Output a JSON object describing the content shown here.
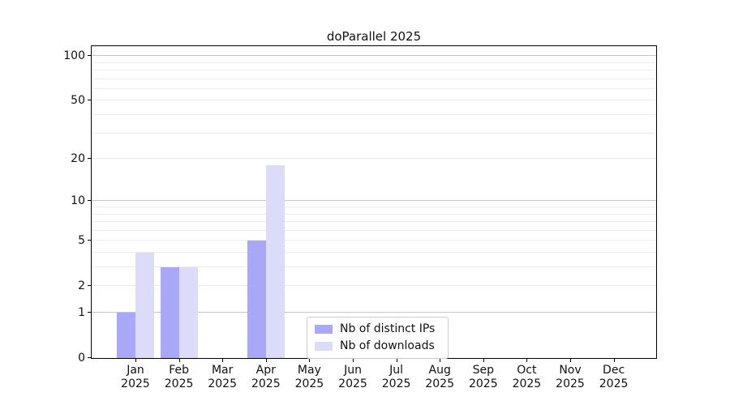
{
  "chart_data": {
    "type": "bar",
    "title": "doParallel 2025",
    "categories": [
      "Jan",
      "Feb",
      "Mar",
      "Apr",
      "May",
      "Jun",
      "Jul",
      "Aug",
      "Sep",
      "Oct",
      "Nov",
      "Dec"
    ],
    "year_label": "2025",
    "series": [
      {
        "name": "Nb of distinct IPs",
        "color": "#a8a8f6",
        "values": [
          1,
          3,
          0,
          5,
          0,
          0,
          0,
          0,
          0,
          0,
          0,
          0
        ]
      },
      {
        "name": "Nb of downloads",
        "color": "#dcdcf8",
        "values": [
          4,
          3,
          0,
          18,
          0,
          0,
          0,
          0,
          0,
          0,
          0,
          0
        ]
      }
    ],
    "y_ticks": [
      0,
      1,
      2,
      5,
      10,
      20,
      50,
      100
    ],
    "y_major_gridlines": [
      1,
      10,
      100
    ],
    "y_minor_gridlines": [
      2,
      3,
      4,
      5,
      6,
      7,
      8,
      9,
      20,
      30,
      40,
      50,
      60,
      70,
      80,
      90
    ],
    "y_scale": "log10(1+x)",
    "ylim": [
      0,
      118
    ],
    "xlabel": "",
    "ylabel": "",
    "grid": "horizontal, major + minor",
    "legend_position": "inside lower-center",
    "colors": {
      "spine": "#000000",
      "major_grid": "#c6c6c6",
      "minor_grid": "#ebebeb",
      "legend_border": "#cccccc",
      "background": "#ffffff"
    }
  }
}
